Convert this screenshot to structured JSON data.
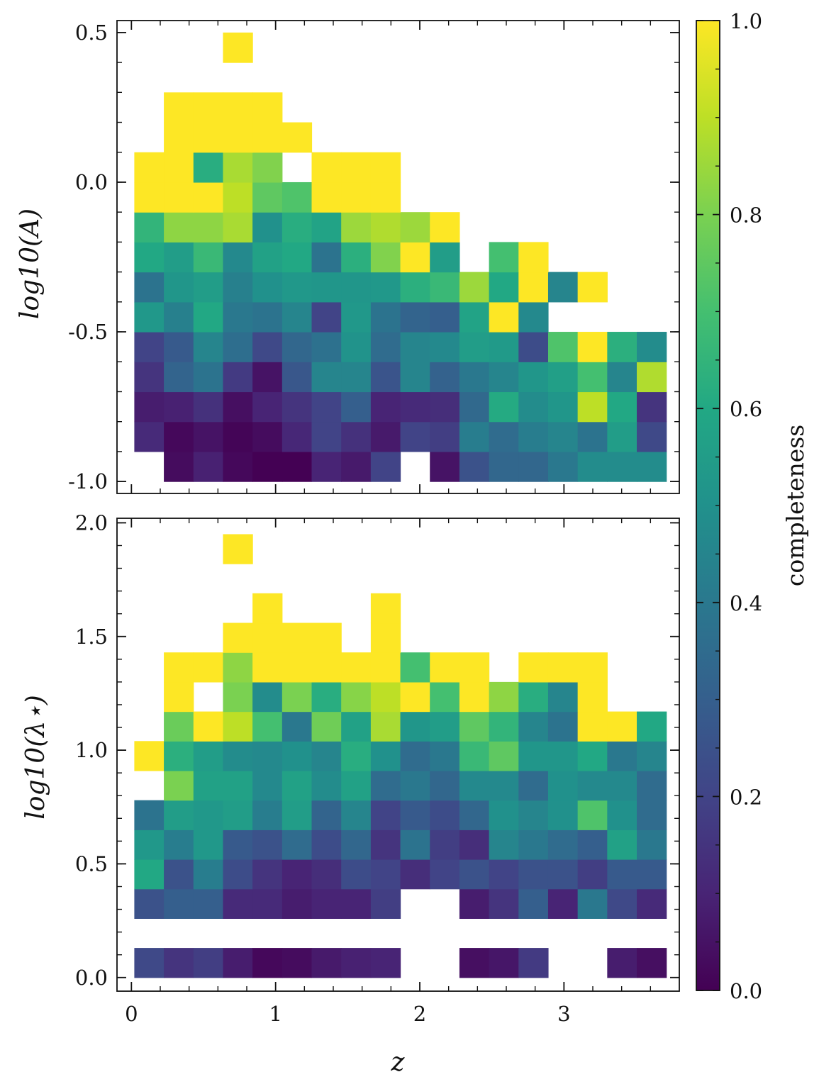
{
  "chart_data": {
    "type": "heatmap",
    "colorbar": {
      "label": "completeness",
      "range": [
        0.0,
        1.0
      ],
      "ticks": [
        0.0,
        0.2,
        0.4,
        0.6,
        0.8,
        1.0
      ],
      "tick_labels": [
        "0.0",
        "0.2",
        "0.4",
        "0.6",
        "0.8",
        "1.0"
      ],
      "colormap": "viridis"
    },
    "x": {
      "label": "z",
      "range": [
        -0.1,
        3.8
      ],
      "ticks": [
        0,
        1,
        2,
        3
      ],
      "tick_labels": [
        "0",
        "1",
        "2",
        "3"
      ],
      "bin_edges": [
        0.02,
        0.225,
        0.43,
        0.635,
        0.84,
        1.045,
        1.25,
        1.455,
        1.66,
        1.865,
        2.07,
        2.275,
        2.48,
        2.685,
        2.89,
        3.095,
        3.3,
        3.505,
        3.71
      ]
    },
    "panels": [
      {
        "ylabel": "log10(A)",
        "ylim": [
          -1.04,
          0.54
        ],
        "yticks": [
          -1.0,
          -0.5,
          0.0,
          0.5
        ],
        "ytick_labels": [
          "-1.0",
          "-0.5",
          "0.0",
          "0.5"
        ],
        "y_bin_edges": [
          -1.0,
          -0.9,
          -0.8,
          -0.7,
          -0.6,
          -0.5,
          -0.4,
          -0.3,
          -0.2,
          -0.1,
          0.0,
          0.1,
          0.2,
          0.3,
          0.4,
          0.5
        ],
        "values": [
          [
            null,
            0.03,
            0.09,
            0.02,
            0.0,
            0.0,
            0.1,
            0.07,
            0.2,
            null,
            0.05,
            0.25,
            0.33,
            0.33,
            0.4,
            0.48,
            0.48,
            0.48
          ],
          [
            0.12,
            0.02,
            0.05,
            0.01,
            0.03,
            0.11,
            0.2,
            0.14,
            0.07,
            0.2,
            0.18,
            0.42,
            0.35,
            0.42,
            0.45,
            0.38,
            0.55,
            0.22
          ],
          [
            0.08,
            0.09,
            0.14,
            0.04,
            0.1,
            0.15,
            0.2,
            0.3,
            0.1,
            0.12,
            0.13,
            0.34,
            0.61,
            0.48,
            0.52,
            0.9,
            0.6,
            0.15
          ],
          [
            0.15,
            0.32,
            0.38,
            0.17,
            0.05,
            0.27,
            0.45,
            0.45,
            0.26,
            0.45,
            0.31,
            0.4,
            0.45,
            0.52,
            0.56,
            0.7,
            0.45,
            0.88
          ],
          [
            0.2,
            0.28,
            0.45,
            0.36,
            0.22,
            0.33,
            0.37,
            0.51,
            0.35,
            0.45,
            0.47,
            0.55,
            0.54,
            0.23,
            0.72,
            1.0,
            0.63,
            0.48
          ],
          [
            0.53,
            0.43,
            0.6,
            0.4,
            0.38,
            0.45,
            0.2,
            0.53,
            0.38,
            0.32,
            0.3,
            0.58,
            1.0,
            0.47,
            null,
            null,
            null,
            null
          ],
          [
            0.38,
            0.52,
            0.55,
            0.43,
            0.5,
            0.53,
            0.52,
            0.52,
            0.53,
            0.63,
            0.67,
            0.85,
            0.6,
            1.0,
            0.45,
            1.0,
            null,
            null
          ],
          [
            0.6,
            0.55,
            0.67,
            0.47,
            0.57,
            0.6,
            0.38,
            0.63,
            0.81,
            1.0,
            0.55,
            null,
            0.7,
            1.0,
            null,
            null,
            null,
            null
          ],
          [
            0.65,
            0.83,
            0.83,
            0.87,
            0.5,
            0.62,
            0.58,
            0.85,
            0.88,
            0.85,
            1.0,
            null,
            null,
            null,
            null,
            null,
            null,
            null
          ],
          [
            1.0,
            1.0,
            1.0,
            0.9,
            0.75,
            0.72,
            1.0,
            1.0,
            1.0,
            null,
            null,
            null,
            null,
            null,
            null,
            null,
            null,
            null
          ],
          [
            1.0,
            1.0,
            0.62,
            0.87,
            0.81,
            null,
            1.0,
            1.0,
            1.0,
            null,
            null,
            null,
            null,
            null,
            null,
            null,
            null,
            null
          ],
          [
            null,
            1.0,
            1.0,
            1.0,
            1.0,
            1.0,
            null,
            null,
            null,
            null,
            null,
            null,
            null,
            null,
            null,
            null,
            null,
            null
          ],
          [
            null,
            1.0,
            1.0,
            1.0,
            1.0,
            null,
            null,
            null,
            null,
            null,
            null,
            null,
            null,
            null,
            null,
            null,
            null,
            null
          ],
          [
            null,
            null,
            null,
            null,
            null,
            null,
            null,
            null,
            null,
            null,
            null,
            null,
            null,
            null,
            null,
            null,
            null,
            null
          ],
          [
            null,
            null,
            null,
            1.0,
            null,
            null,
            null,
            null,
            null,
            null,
            null,
            null,
            null,
            null,
            null,
            null,
            null,
            null
          ]
        ]
      },
      {
        "ylabel": "log10(λ⋆)",
        "ylim": [
          -0.06,
          2.02
        ],
        "yticks": [
          0.0,
          0.5,
          1.0,
          1.5,
          2.0
        ],
        "ytick_labels": [
          "0.0",
          "0.5",
          "1.0",
          "1.5",
          "2.0"
        ],
        "y_bin_edges": [
          0.0,
          0.13,
          0.26,
          0.39,
          0.52,
          0.65,
          0.78,
          0.91,
          1.04,
          1.17,
          1.3,
          1.43,
          1.56,
          1.69,
          1.82,
          1.95
        ],
        "values": [
          [
            0.22,
            0.15,
            0.18,
            0.08,
            0.02,
            0.03,
            0.07,
            0.09,
            0.1,
            null,
            null,
            0.04,
            0.06,
            0.17,
            null,
            null,
            0.08,
            0.04
          ],
          [
            null,
            null,
            null,
            null,
            null,
            null,
            null,
            null,
            null,
            null,
            null,
            null,
            null,
            null,
            null,
            null,
            null,
            null
          ],
          [
            0.25,
            0.3,
            0.3,
            0.12,
            0.12,
            0.08,
            0.1,
            0.1,
            0.18,
            null,
            null,
            0.08,
            0.15,
            0.3,
            0.1,
            0.4,
            0.22,
            0.12
          ],
          [
            0.6,
            0.25,
            0.42,
            0.23,
            0.15,
            0.1,
            0.13,
            0.23,
            0.2,
            0.13,
            0.2,
            0.25,
            0.2,
            0.25,
            0.25,
            0.18,
            0.28,
            0.28
          ],
          [
            0.53,
            0.42,
            0.53,
            0.28,
            0.25,
            0.35,
            0.23,
            0.33,
            0.15,
            0.38,
            0.18,
            0.13,
            0.45,
            0.4,
            0.35,
            0.3,
            0.57,
            0.4
          ],
          [
            0.38,
            0.55,
            0.53,
            0.55,
            0.42,
            0.55,
            0.32,
            0.45,
            0.2,
            0.28,
            0.23,
            0.33,
            0.5,
            0.45,
            0.5,
            0.72,
            0.5,
            0.35
          ],
          [
            null,
            0.8,
            0.57,
            0.57,
            0.47,
            0.57,
            0.48,
            0.57,
            0.35,
            0.4,
            0.33,
            0.47,
            0.47,
            0.35,
            0.5,
            0.47,
            0.47,
            0.35
          ],
          [
            1.0,
            0.63,
            0.55,
            0.48,
            0.47,
            0.5,
            0.45,
            0.62,
            0.5,
            0.35,
            0.4,
            0.67,
            0.75,
            0.52,
            0.52,
            0.6,
            0.4,
            0.45
          ],
          [
            null,
            0.77,
            1.0,
            0.9,
            0.7,
            0.4,
            0.78,
            0.57,
            0.87,
            0.52,
            0.55,
            0.75,
            0.65,
            0.45,
            0.38,
            1.0,
            1.0,
            0.6
          ],
          [
            null,
            1.0,
            null,
            0.8,
            0.48,
            0.8,
            0.62,
            0.82,
            0.9,
            1.0,
            0.7,
            1.0,
            0.83,
            0.62,
            0.45,
            1.0,
            null,
            null
          ],
          [
            null,
            1.0,
            1.0,
            0.83,
            1.0,
            1.0,
            1.0,
            1.0,
            1.0,
            0.7,
            1.0,
            1.0,
            null,
            1.0,
            1.0,
            1.0,
            null,
            null
          ],
          [
            null,
            null,
            null,
            1.0,
            1.0,
            1.0,
            1.0,
            null,
            1.0,
            null,
            null,
            null,
            null,
            null,
            null,
            null,
            null,
            null
          ],
          [
            null,
            null,
            null,
            null,
            1.0,
            null,
            null,
            null,
            1.0,
            null,
            null,
            null,
            null,
            null,
            null,
            null,
            null,
            null
          ],
          [
            null,
            null,
            null,
            null,
            null,
            null,
            null,
            null,
            null,
            null,
            null,
            null,
            null,
            null,
            null,
            null,
            null,
            null
          ],
          [
            null,
            null,
            null,
            1.0,
            null,
            null,
            null,
            null,
            null,
            null,
            null,
            null,
            null,
            null,
            null,
            null,
            null,
            null
          ]
        ]
      }
    ]
  }
}
